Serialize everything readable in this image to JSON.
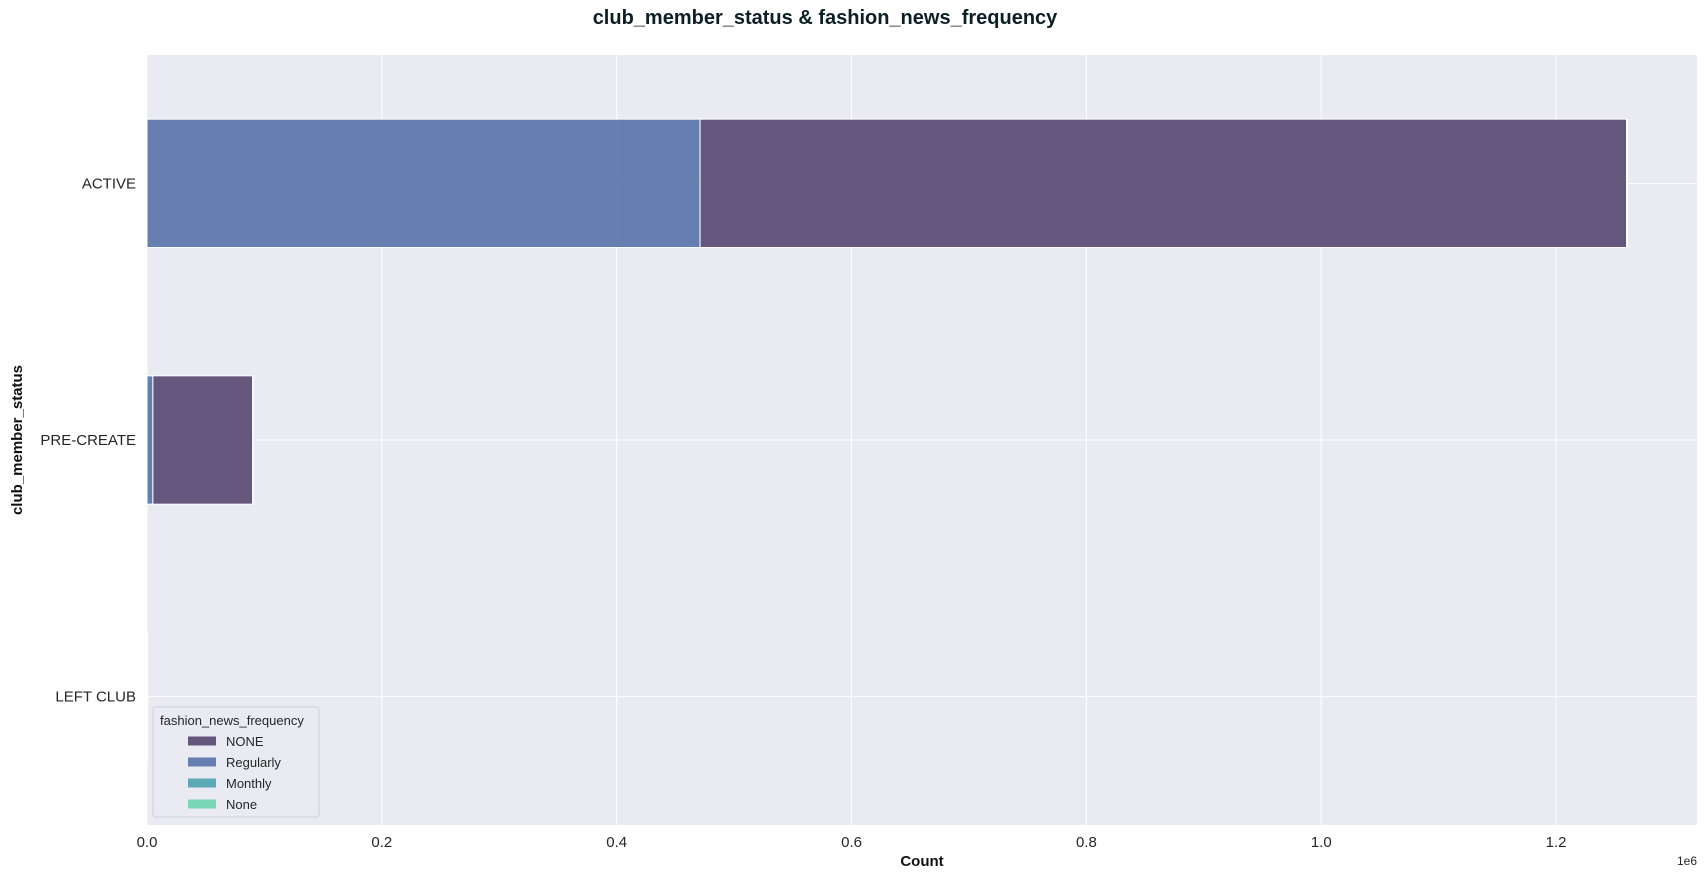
{
  "chart_data": {
    "type": "bar",
    "orientation": "horizontal",
    "stacked": true,
    "title": "club_member_status & fashion_news_frequency",
    "xlabel": "Count",
    "ylabel": "club_member_status",
    "x_offset_label": "1e6",
    "xlim": [
      0,
      1320000
    ],
    "x_ticks": [
      0,
      200000,
      400000,
      600000,
      800000,
      1000000,
      1200000
    ],
    "x_tick_labels": [
      "0.0",
      "0.2",
      "0.4",
      "0.6",
      "0.8",
      "1.0",
      "1.2"
    ],
    "categories": [
      "ACTIVE",
      "PRE-CREATE",
      "LEFT CLUB"
    ],
    "series": [
      {
        "name": "Regularly",
        "color": "#5873a9",
        "values": [
          471000,
          5000,
          50
        ]
      },
      {
        "name": "NONE",
        "color": "#574670",
        "values": [
          789000,
          85000,
          420
        ]
      },
      {
        "name": "Monthly",
        "color": "#4ea3b0",
        "values": [
          800,
          10,
          0
        ]
      },
      {
        "name": "None",
        "color": "#6fd3b0",
        "values": [
          0,
          0,
          0
        ]
      }
    ],
    "grid": true,
    "background": "#eaeaf2",
    "legend": {
      "title": "fashion_news_frequency",
      "position": "lower-left",
      "entries": [
        {
          "label": "NONE",
          "color": "#574670"
        },
        {
          "label": "Regularly",
          "color": "#5873a9"
        },
        {
          "label": "Monthly",
          "color": "#4ea3b0"
        },
        {
          "label": "None",
          "color": "#6fd3b0"
        }
      ]
    }
  }
}
